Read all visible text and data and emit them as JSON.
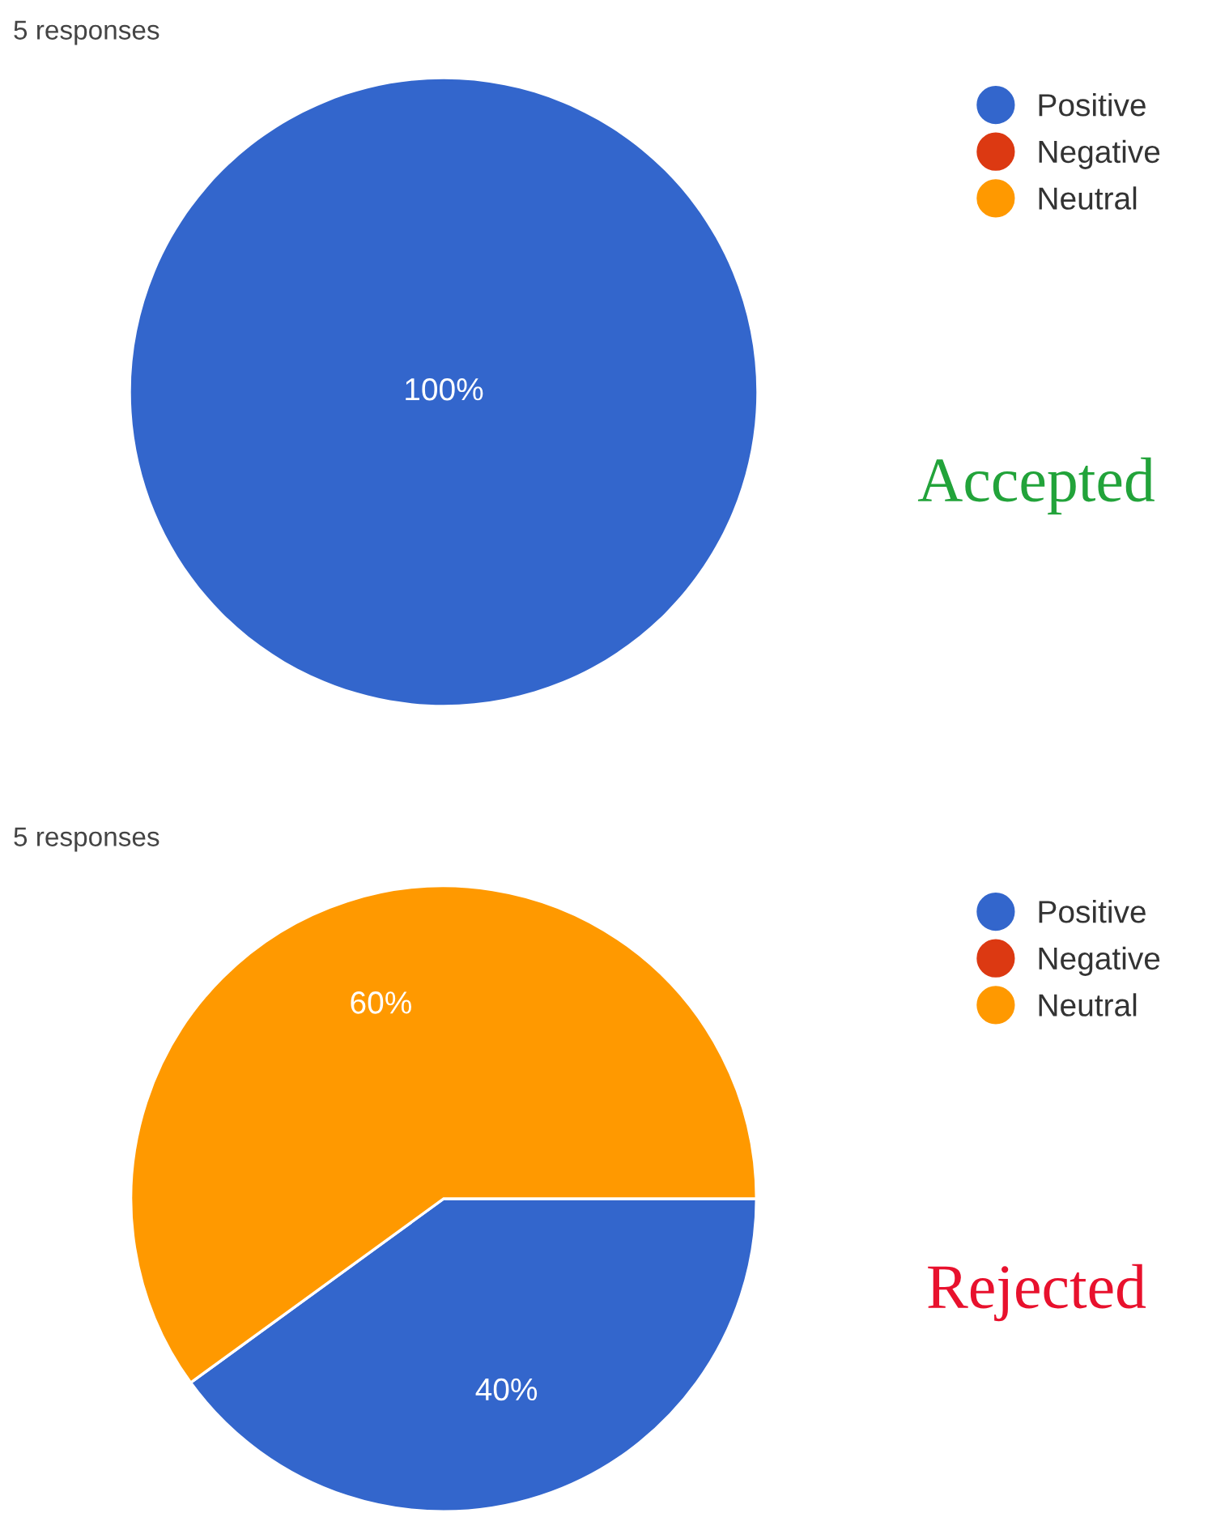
{
  "chart_data": [
    {
      "type": "pie",
      "title": "5 responses",
      "categories": [
        "Positive",
        "Negative",
        "Neutral"
      ],
      "values": [
        100,
        0,
        0
      ],
      "colors": [
        "#3366cc",
        "#dc3912",
        "#ff9900"
      ],
      "value_labels": [
        "100%",
        null,
        null
      ],
      "legend": "top right",
      "annotations": [
        "Accepted"
      ]
    },
    {
      "type": "pie",
      "title": "5 responses",
      "categories": [
        "Positive",
        "Negative",
        "Neutral"
      ],
      "values": [
        40,
        0,
        60
      ],
      "colors": [
        "#3366cc",
        "#dc3912",
        "#ff9900"
      ],
      "value_labels": [
        "40%",
        null,
        "60%"
      ],
      "legend": "top right",
      "annotations": [
        "Rejected"
      ]
    }
  ]
}
